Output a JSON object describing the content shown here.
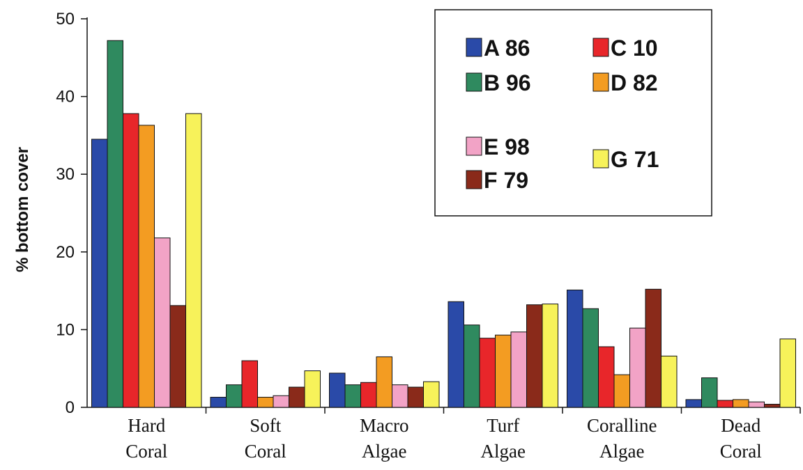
{
  "chart_data": {
    "type": "bar",
    "ylabel": "% bottom cover",
    "xlabel": "",
    "ylim": [
      0,
      50
    ],
    "yticks": [
      "0",
      "10",
      "20",
      "30",
      "40",
      "50"
    ],
    "grid": false,
    "legend_position": "top-right",
    "categories": [
      [
        "Hard",
        "Coral"
      ],
      [
        "Soft",
        "Coral"
      ],
      [
        "Macro",
        "Algae"
      ],
      [
        "Turf",
        "Algae"
      ],
      [
        "Coralline",
        "Algae"
      ],
      [
        "Dead",
        "Coral"
      ]
    ],
    "series": [
      {
        "name": "A 86",
        "color": "#2a4aa8",
        "values": [
          34.5,
          1.3,
          4.4,
          13.6,
          15.1,
          1.0
        ]
      },
      {
        "name": "B 96",
        "color": "#2f8a5f",
        "values": [
          47.2,
          2.9,
          2.9,
          10.6,
          12.7,
          3.8
        ]
      },
      {
        "name": "C 10",
        "color": "#e8262a",
        "values": [
          37.8,
          6.0,
          3.2,
          8.9,
          7.8,
          0.9
        ]
      },
      {
        "name": "D 82",
        "color": "#f39c22",
        "values": [
          36.3,
          1.3,
          6.5,
          9.3,
          4.2,
          1.0
        ]
      },
      {
        "name": "E 98",
        "color": "#f2a3c6",
        "values": [
          21.8,
          1.5,
          2.9,
          9.7,
          10.2,
          0.7
        ]
      },
      {
        "name": "F 79",
        "color": "#8a2a1a",
        "values": [
          13.1,
          2.6,
          2.6,
          13.2,
          15.2,
          0.4
        ]
      },
      {
        "name": "G 71",
        "color": "#f7f25a",
        "values": [
          37.8,
          4.7,
          3.3,
          13.3,
          6.6,
          8.8
        ]
      }
    ]
  }
}
